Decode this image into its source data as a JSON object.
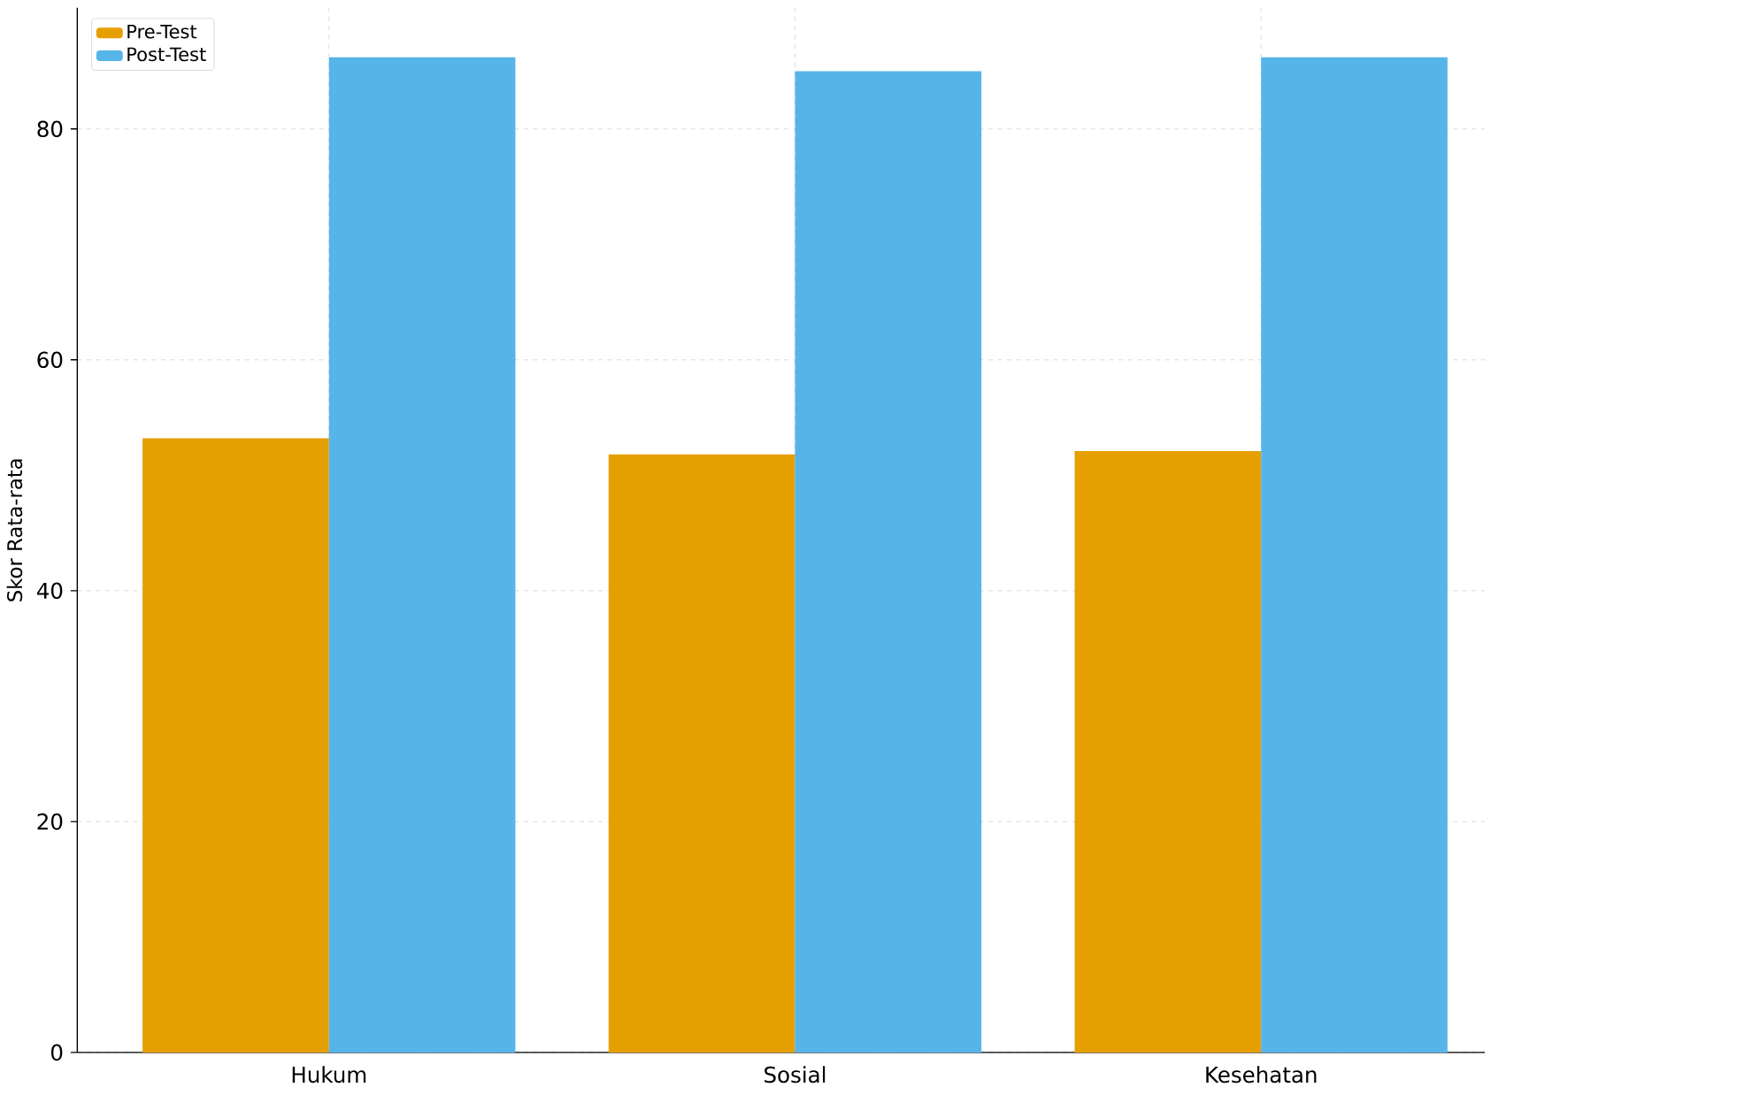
{
  "chart_data": {
    "type": "bar",
    "ylabel": "Skor Rata-rata",
    "categories": [
      "Hukum",
      "Sosial",
      "Kesehatan"
    ],
    "series": [
      {
        "name": "Pre-Test",
        "color": "#e69f00",
        "values": [
          53.2,
          51.8,
          52.1
        ]
      },
      {
        "name": "Post-Test",
        "color": "#56b4e9",
        "values": [
          86.2,
          85.0,
          86.2
        ]
      }
    ],
    "ylim": [
      0,
      90.5
    ],
    "yticks": [
      0,
      20,
      40,
      60,
      80
    ],
    "grid": true,
    "legend": "top left"
  }
}
